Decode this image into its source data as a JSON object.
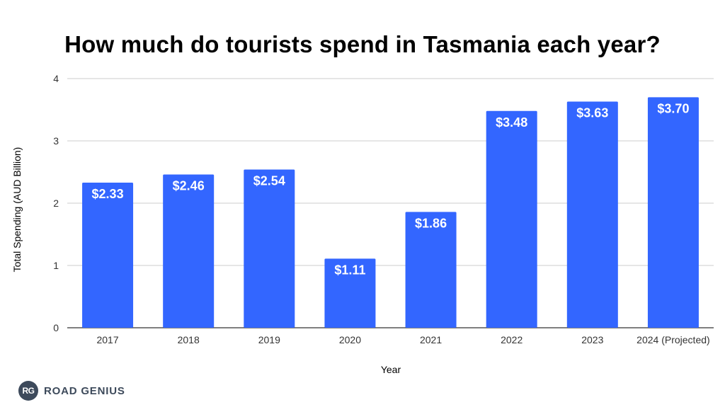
{
  "chart_data": {
    "type": "bar",
    "title": "How much do tourists spend in Tasmania each year?",
    "xlabel": "Year",
    "ylabel": "Total Spending (AUD Billion)",
    "categories": [
      "2017",
      "2018",
      "2019",
      "2020",
      "2021",
      "2022",
      "2023",
      "2024 (Projected)"
    ],
    "values": [
      2.33,
      2.46,
      2.54,
      1.11,
      1.86,
      3.48,
      3.63,
      3.7
    ],
    "data_labels": [
      "$2.33",
      "$2.46",
      "$2.54",
      "$1.11",
      "$1.86",
      "$3.48",
      "$3.63",
      "$3.70"
    ],
    "ylim": [
      0,
      4
    ],
    "yticks": [
      "0",
      "1",
      "2",
      "3",
      "4"
    ],
    "grid": true,
    "bar_color": "#3366ff",
    "label_color": "#ffffff"
  },
  "branding": {
    "badge": "RG",
    "name": "ROAD GENIUS",
    "color": "#3d4a5b"
  }
}
